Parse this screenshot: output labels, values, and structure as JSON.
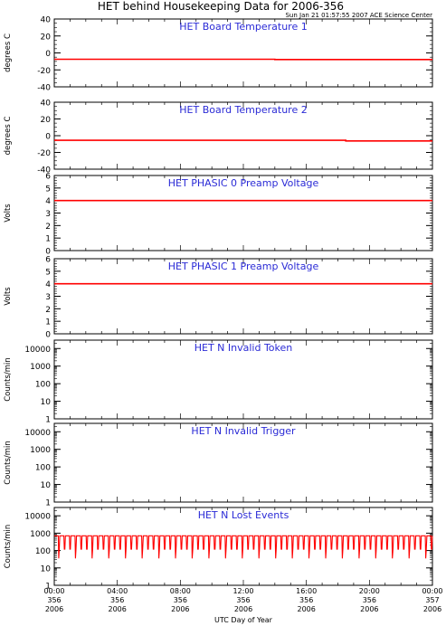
{
  "title": "HET behind Housekeeping Data for 2006-356",
  "timestamp": "Sun Jan 21 01:57:55 2007 ACE Science Center",
  "x_axis_label": "UTC Day of Year",
  "colors": {
    "data": "#ff0000",
    "panel_title": "#2b2bd6",
    "axes": "#000000"
  },
  "chart_data": [
    {
      "type": "line",
      "title": "HET Board Temperature 1",
      "ylabel": "degrees C",
      "ylim": [
        -40,
        40
      ],
      "yticks": [
        {
          "v": 40,
          "label": "40"
        },
        {
          "v": 20,
          "label": "20"
        },
        {
          "v": 0,
          "label": "0"
        },
        {
          "v": -20,
          "label": "-20"
        },
        {
          "v": -40,
          "label": "-40"
        }
      ],
      "yscale": "linear",
      "render": "line",
      "series": [
        {
          "x": [
            0,
            14,
            14,
            24
          ],
          "y": [
            -7.5,
            -7.5,
            -7.8,
            -7.8
          ]
        }
      ]
    },
    {
      "type": "line",
      "title": "HET Board Temperature 2",
      "ylabel": "degrees C",
      "ylim": [
        -40,
        40
      ],
      "yticks": [
        {
          "v": 40,
          "label": "40"
        },
        {
          "v": 20,
          "label": "20"
        },
        {
          "v": 0,
          "label": "0"
        },
        {
          "v": -20,
          "label": "-20"
        },
        {
          "v": -40,
          "label": "-40"
        }
      ],
      "yscale": "linear",
      "render": "line",
      "series": [
        {
          "x": [
            0,
            18.5,
            18.5,
            24
          ],
          "y": [
            -5.5,
            -5.5,
            -6.3,
            -6.3
          ]
        }
      ]
    },
    {
      "type": "line",
      "title": "HET PHASIC 0 Preamp Voltage",
      "ylabel": "Volts",
      "ylim": [
        0,
        6
      ],
      "yticks": [
        {
          "v": 0,
          "label": "0"
        },
        {
          "v": 1,
          "label": "1"
        },
        {
          "v": 2,
          "label": "2"
        },
        {
          "v": 3,
          "label": "3"
        },
        {
          "v": 4,
          "label": "4"
        },
        {
          "v": 5,
          "label": "5"
        },
        {
          "v": 6,
          "label": "6"
        }
      ],
      "yscale": "linear",
      "render": "line",
      "series": [
        {
          "x": [
            0,
            24
          ],
          "y": [
            4.0,
            4.0
          ]
        }
      ]
    },
    {
      "type": "line",
      "title": "HET PHASIC 1 Preamp Voltage",
      "ylabel": "Volts",
      "ylim": [
        0,
        6
      ],
      "yticks": [
        {
          "v": 0,
          "label": "0"
        },
        {
          "v": 1,
          "label": "1"
        },
        {
          "v": 2,
          "label": "2"
        },
        {
          "v": 3,
          "label": "3"
        },
        {
          "v": 4,
          "label": "4"
        },
        {
          "v": 5,
          "label": "5"
        },
        {
          "v": 6,
          "label": "6"
        }
      ],
      "yscale": "linear",
      "render": "line",
      "series": [
        {
          "x": [
            0,
            24
          ],
          "y": [
            4.0,
            4.0
          ]
        }
      ]
    },
    {
      "type": "line",
      "title": "HET N Invalid Token",
      "ylabel": "Counts/min",
      "ylim": [
        1,
        30000
      ],
      "yticks": [
        {
          "v": 1,
          "label": "1"
        },
        {
          "v": 10,
          "label": "10"
        },
        {
          "v": 100,
          "label": "100"
        },
        {
          "v": 1000,
          "label": "1000"
        },
        {
          "v": 10000,
          "label": "10000"
        }
      ],
      "yscale": "log",
      "render": "none",
      "series": []
    },
    {
      "type": "line",
      "title": "HET N Invalid Trigger",
      "ylabel": "Counts/min",
      "ylim": [
        1,
        30000
      ],
      "yticks": [
        {
          "v": 1,
          "label": "1"
        },
        {
          "v": 10,
          "label": "10"
        },
        {
          "v": 100,
          "label": "100"
        },
        {
          "v": 1000,
          "label": "1000"
        },
        {
          "v": 10000,
          "label": "10000"
        }
      ],
      "yscale": "log",
      "render": "none",
      "series": []
    },
    {
      "type": "line",
      "title": "HET N Lost Events",
      "ylabel": "Counts/min",
      "ylim": [
        1,
        30000
      ],
      "yticks": [
        {
          "v": 1,
          "label": "1"
        },
        {
          "v": 10,
          "label": "10"
        },
        {
          "v": 100,
          "label": "100"
        },
        {
          "v": 1000,
          "label": "1000"
        },
        {
          "v": 10000,
          "label": "10000"
        }
      ],
      "yscale": "log",
      "render": "oscillation",
      "series": [
        {
          "low": 120,
          "high": 700,
          "dip": 35,
          "periods": 68,
          "xrange": [
            0,
            24
          ]
        }
      ]
    }
  ],
  "x_axis": {
    "range": [
      0,
      24
    ],
    "ticks": [
      {
        "v": 0,
        "time": "00:00",
        "doy": "356",
        "year": "2006"
      },
      {
        "v": 4,
        "time": "04:00",
        "doy": "356",
        "year": "2006"
      },
      {
        "v": 8,
        "time": "08:00",
        "doy": "356",
        "year": "2006"
      },
      {
        "v": 12,
        "time": "12:00",
        "doy": "356",
        "year": "2006"
      },
      {
        "v": 16,
        "time": "16:00",
        "doy": "356",
        "year": "2006"
      },
      {
        "v": 20,
        "time": "20:00",
        "doy": "356",
        "year": "2006"
      },
      {
        "v": 24,
        "time": "00:00",
        "doy": "357",
        "year": "2006"
      }
    ]
  }
}
